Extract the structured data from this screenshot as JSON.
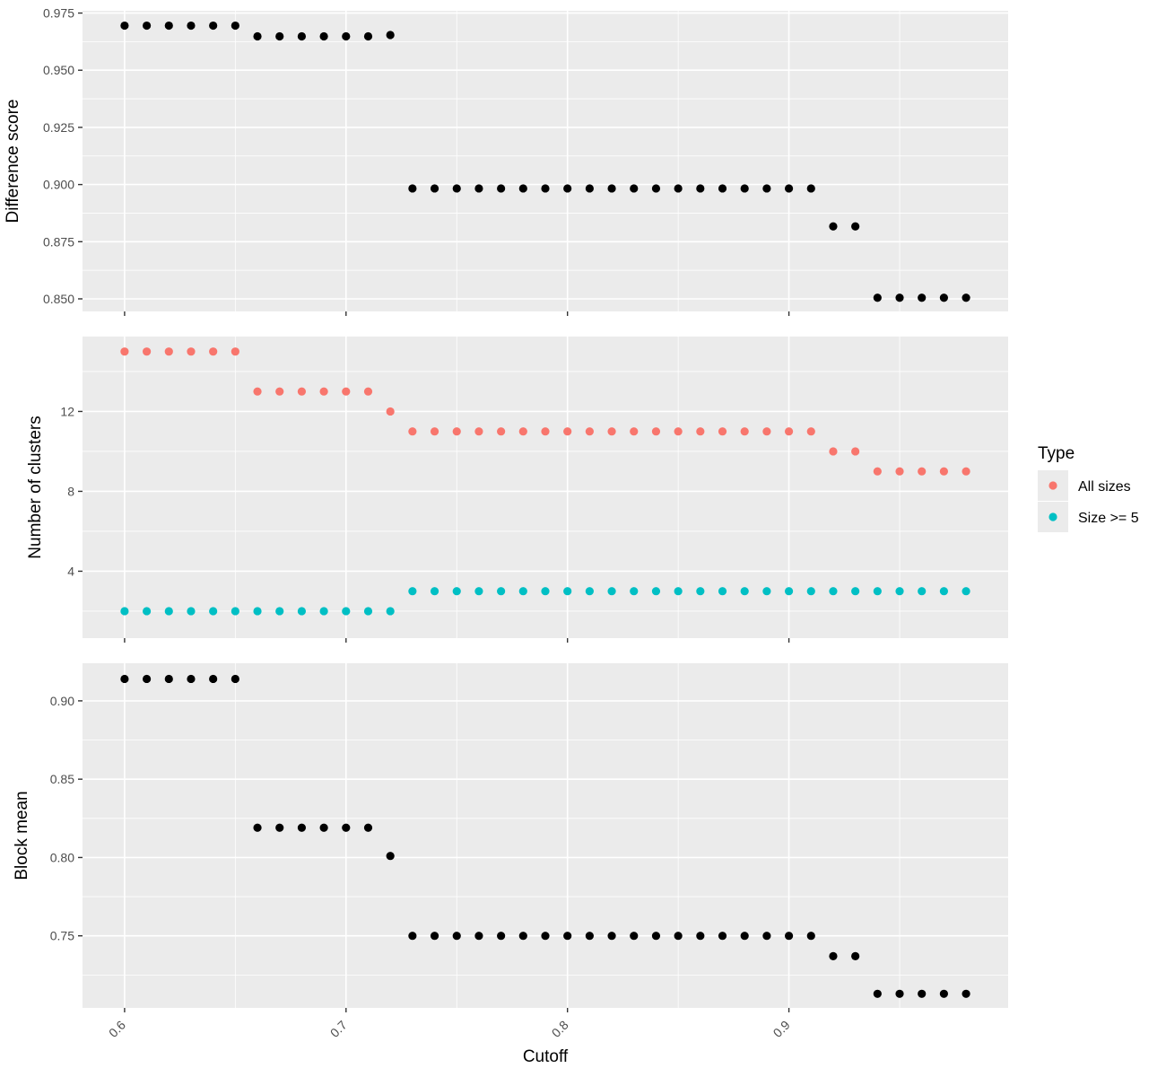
{
  "chart_data": [
    {
      "type": "scatter",
      "ylabel": "Difference score",
      "xlabel": "",
      "xlim": [
        0.581,
        0.999
      ],
      "ylim": [
        0.8445,
        0.976
      ],
      "y_ticks": [
        "0.850",
        "0.875",
        "0.900",
        "0.925",
        "0.950",
        "0.975"
      ],
      "series": [
        {
          "color": "#000000",
          "x": [
            0.6,
            0.61,
            0.62,
            0.63,
            0.64,
            0.65,
            0.66,
            0.67,
            0.68,
            0.69,
            0.7,
            0.71,
            0.72,
            0.73,
            0.74,
            0.75,
            0.76,
            0.77,
            0.78,
            0.79,
            0.8,
            0.81,
            0.82,
            0.83,
            0.84,
            0.85,
            0.86,
            0.87,
            0.88,
            0.89,
            0.9,
            0.91,
            0.92,
            0.93,
            0.94,
            0.95,
            0.96,
            0.97,
            0.98
          ],
          "y": [
            0.9695,
            0.9695,
            0.9695,
            0.9695,
            0.9695,
            0.9695,
            0.9648,
            0.9648,
            0.9648,
            0.9648,
            0.9648,
            0.9648,
            0.9654,
            0.8983,
            0.8983,
            0.8983,
            0.8983,
            0.8983,
            0.8983,
            0.8983,
            0.8983,
            0.8983,
            0.8983,
            0.8983,
            0.8983,
            0.8983,
            0.8983,
            0.8983,
            0.8983,
            0.8983,
            0.8983,
            0.8983,
            0.8817,
            0.8817,
            0.8505,
            0.8505,
            0.8505,
            0.8505,
            0.8505
          ]
        }
      ]
    },
    {
      "type": "scatter",
      "ylabel": "Number of clusters",
      "xlabel": "",
      "xlim": [
        0.581,
        0.999
      ],
      "ylim": [
        0.65,
        15.75
      ],
      "y_ticks": [
        "4",
        "8",
        "12"
      ],
      "legend": {
        "title": "Type",
        "position": "right"
      },
      "series": [
        {
          "name": "All sizes",
          "color": "#f8766d",
          "x": [
            0.6,
            0.61,
            0.62,
            0.63,
            0.64,
            0.65,
            0.66,
            0.67,
            0.68,
            0.69,
            0.7,
            0.71,
            0.72,
            0.73,
            0.74,
            0.75,
            0.76,
            0.77,
            0.78,
            0.79,
            0.8,
            0.81,
            0.82,
            0.83,
            0.84,
            0.85,
            0.86,
            0.87,
            0.88,
            0.89,
            0.9,
            0.91,
            0.92,
            0.93,
            0.94,
            0.95,
            0.96,
            0.97,
            0.98
          ],
          "y": [
            15,
            15,
            15,
            15,
            15,
            15,
            13,
            13,
            13,
            13,
            13,
            13,
            12,
            11,
            11,
            11,
            11,
            11,
            11,
            11,
            11,
            11,
            11,
            11,
            11,
            11,
            11,
            11,
            11,
            11,
            11,
            11,
            10,
            10,
            9,
            9,
            9,
            9,
            9
          ]
        },
        {
          "name": "Size >= 5",
          "color": "#00bfc4",
          "x": [
            0.6,
            0.61,
            0.62,
            0.63,
            0.64,
            0.65,
            0.66,
            0.67,
            0.68,
            0.69,
            0.7,
            0.71,
            0.72,
            0.73,
            0.74,
            0.75,
            0.76,
            0.77,
            0.78,
            0.79,
            0.8,
            0.81,
            0.82,
            0.83,
            0.84,
            0.85,
            0.86,
            0.87,
            0.88,
            0.89,
            0.9,
            0.91,
            0.92,
            0.93,
            0.94,
            0.95,
            0.96,
            0.97,
            0.98
          ],
          "y": [
            2,
            2,
            2,
            2,
            2,
            2,
            2,
            2,
            2,
            2,
            2,
            2,
            2,
            3,
            3,
            3,
            3,
            3,
            3,
            3,
            3,
            3,
            3,
            3,
            3,
            3,
            3,
            3,
            3,
            3,
            3,
            3,
            3,
            3,
            3,
            3,
            3,
            3,
            3
          ]
        }
      ]
    },
    {
      "type": "scatter",
      "ylabel": "Block mean",
      "xlabel": "Cutoff",
      "xlim": [
        0.581,
        0.999
      ],
      "ylim": [
        0.704,
        0.924
      ],
      "y_ticks": [
        "0.75",
        "0.80",
        "0.85",
        "0.90"
      ],
      "x_ticks": [
        "0.6",
        "0.7",
        "0.8",
        "0.9"
      ],
      "series": [
        {
          "color": "#000000",
          "x": [
            0.6,
            0.61,
            0.62,
            0.63,
            0.64,
            0.65,
            0.66,
            0.67,
            0.68,
            0.69,
            0.7,
            0.71,
            0.72,
            0.73,
            0.74,
            0.75,
            0.76,
            0.77,
            0.78,
            0.79,
            0.8,
            0.81,
            0.82,
            0.83,
            0.84,
            0.85,
            0.86,
            0.87,
            0.88,
            0.89,
            0.9,
            0.91,
            0.92,
            0.93,
            0.94,
            0.95,
            0.96,
            0.97,
            0.98
          ],
          "y": [
            0.914,
            0.914,
            0.914,
            0.914,
            0.914,
            0.914,
            0.819,
            0.819,
            0.819,
            0.819,
            0.819,
            0.819,
            0.801,
            0.75,
            0.75,
            0.75,
            0.75,
            0.75,
            0.75,
            0.75,
            0.75,
            0.75,
            0.75,
            0.75,
            0.75,
            0.75,
            0.75,
            0.75,
            0.75,
            0.75,
            0.75,
            0.75,
            0.737,
            0.737,
            0.713,
            0.713,
            0.713,
            0.713,
            0.713
          ]
        }
      ]
    }
  ]
}
